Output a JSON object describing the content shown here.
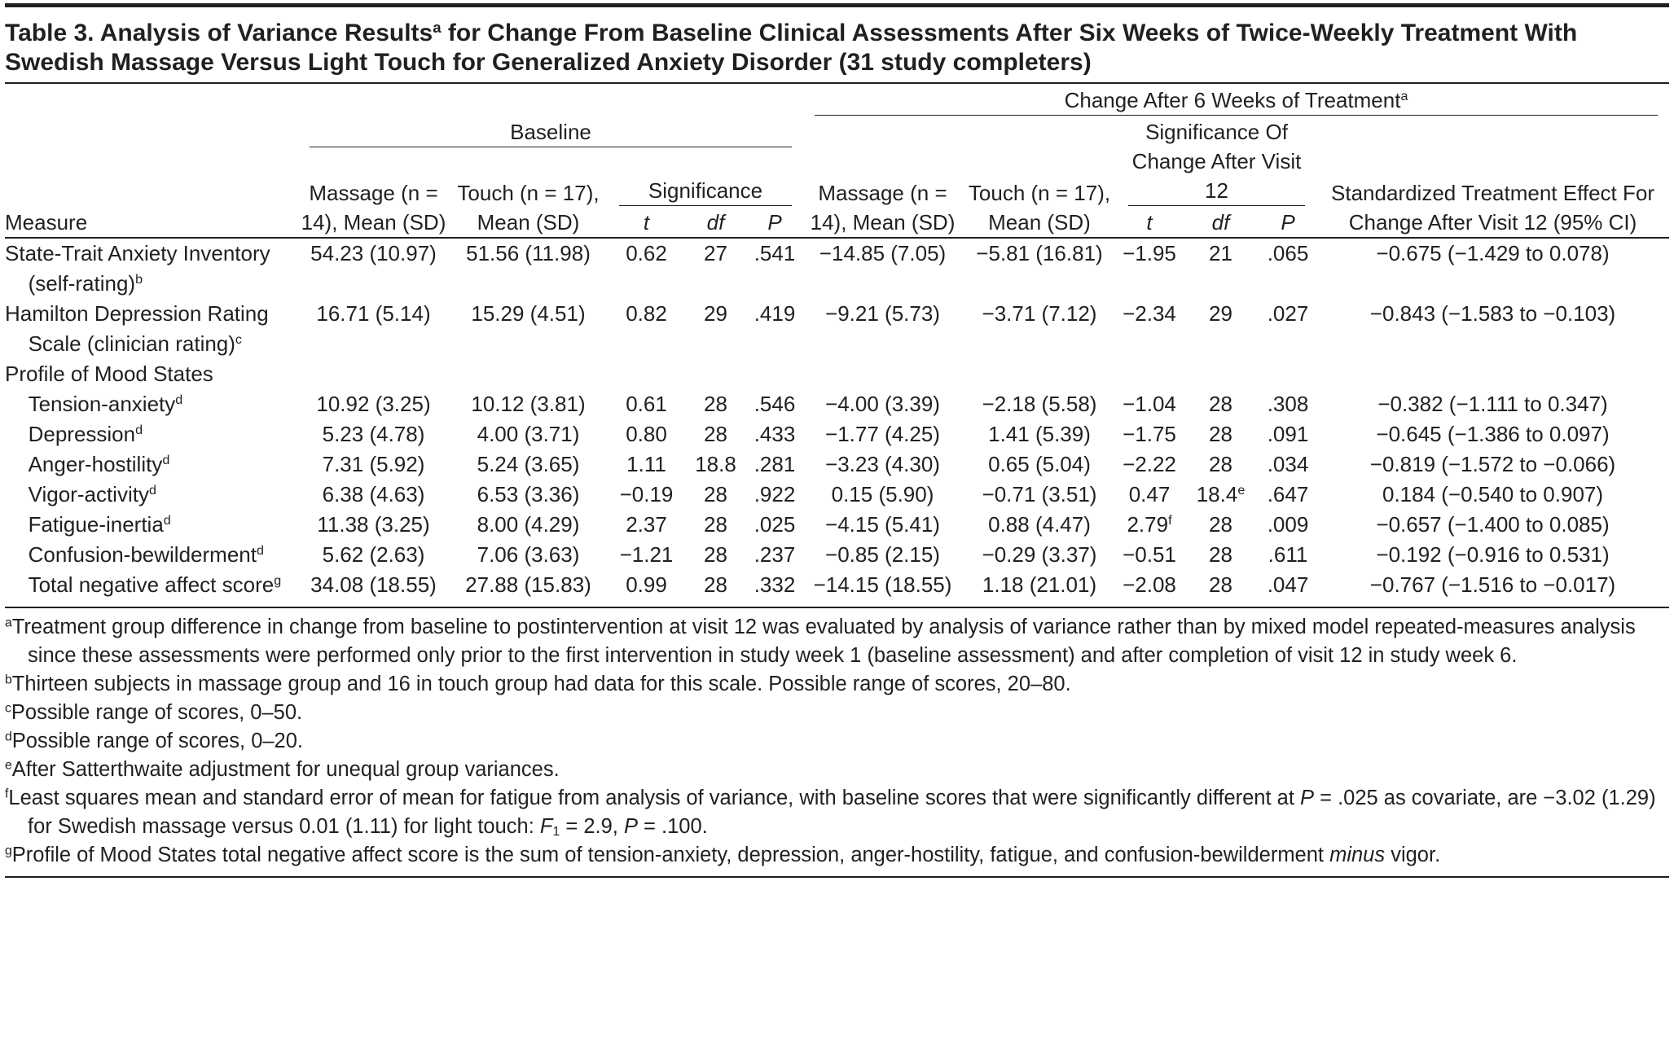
{
  "title": {
    "text": "Table 3. Analysis of Variance Results",
    "sup": "a",
    "rest": " for Change From Baseline Clinical Assessments After Six Weeks of Twice-Weekly Treatment With Swedish Massage Versus Light Touch for Generalized Anxiety Disorder (31 study completers)"
  },
  "header": {
    "change_group": {
      "text": "Change After 6 Weeks of Treatment",
      "sup": "a"
    },
    "baseline_group": "Baseline",
    "baseline_significance": "Significance",
    "change_significance": "Significance Of Change After Visit 12",
    "columns": [
      "Measure",
      "Massage (n = 14), Mean (SD)",
      "Touch (n = 17), Mean (SD)",
      "t",
      "df",
      "P",
      "Massage (n = 14), Mean (SD)",
      "Touch (n = 17), Mean (SD)",
      "t",
      "df",
      "P",
      "Standardized Treatment Effect For Change After Visit 12 (95% CI)"
    ]
  },
  "rows": [
    {
      "measure": "State-Trait Anxiety Inventory (self-rating)",
      "sup": "b",
      "values": [
        "54.23 (10.97)",
        "51.56 (11.98)",
        "0.62",
        "27",
        ".541",
        "−14.85 (7.05)",
        "−5.81 (16.81)",
        "−1.95",
        "21",
        ".065",
        "−0.675 (−1.429 to 0.078)"
      ]
    },
    {
      "measure": "Hamilton Depression Rating Scale (clinician rating)",
      "sup": "c",
      "values": [
        "16.71 (5.14)",
        "15.29 (4.51)",
        "0.82",
        "29",
        ".419",
        "−9.21 (5.73)",
        "−3.71 (7.12)",
        "−2.34",
        "29",
        ".027",
        "−0.843 (−1.583 to −0.103)"
      ]
    }
  ],
  "group": {
    "label": "Profile of Mood States",
    "rows": [
      {
        "measure": "Tension-anxiety",
        "sup": "d",
        "values": [
          "10.92 (3.25)",
          "10.12 (3.81)",
          "0.61",
          "28",
          ".546",
          "−4.00 (3.39)",
          "−2.18 (5.58)",
          "−1.04",
          "28",
          ".308",
          "−0.382 (−1.111 to 0.347)"
        ]
      },
      {
        "measure": "Depression",
        "sup": "d",
        "values": [
          "5.23 (4.78)",
          "4.00 (3.71)",
          "0.80",
          "28",
          ".433",
          "−1.77 (4.25)",
          "1.41 (5.39)",
          "−1.75",
          "28",
          ".091",
          "−0.645 (−1.386 to 0.097)"
        ]
      },
      {
        "measure": "Anger-hostility",
        "sup": "d",
        "values": [
          "7.31 (5.92)",
          "5.24 (3.65)",
          "1.11",
          "18.8",
          ".281",
          "−3.23 (4.30)",
          "0.65 (5.04)",
          "−2.22",
          "28",
          ".034",
          "−0.819 (−1.572 to −0.066)"
        ]
      },
      {
        "measure": "Vigor-activity",
        "sup": "d",
        "values": [
          "6.38 (4.63)",
          "6.53 (3.36)",
          "−0.19",
          "28",
          ".922",
          "0.15 (5.90)",
          "−0.71 (3.51)",
          "0.47",
          {
            "text": "18.4",
            "sup": "e"
          },
          ".647",
          "0.184 (−0.540 to 0.907)"
        ]
      },
      {
        "measure": "Fatigue-inertia",
        "sup": "d",
        "values": [
          "11.38 (3.25)",
          "8.00 (4.29)",
          "2.37",
          "28",
          ".025",
          "−4.15 (5.41)",
          "0.88 (4.47)",
          {
            "text": "2.79",
            "sup": "f"
          },
          "28",
          ".009",
          "−0.657 (−1.400 to 0.085)"
        ]
      },
      {
        "measure": "Confusion-bewilderment",
        "sup": "d",
        "values": [
          "5.62 (2.63)",
          "7.06 (3.63)",
          "−1.21",
          "28",
          ".237",
          "−0.85 (2.15)",
          "−0.29 (3.37)",
          "−0.51",
          "28",
          ".611",
          "−0.192 (−0.916 to 0.531)"
        ]
      },
      {
        "measure": "Total negative affect score",
        "sup": "g",
        "values": [
          "34.08 (18.55)",
          "27.88 (15.83)",
          "0.99",
          "28",
          ".332",
          "−14.15 (18.55)",
          "1.18 (21.01)",
          "−2.08",
          "28",
          ".047",
          "−0.767 (−1.516 to −0.017)"
        ]
      }
    ]
  },
  "footnotes": [
    {
      "mark": "a",
      "text": [
        "Treatment group difference in change from baseline to postintervention at visit 12 was evaluated by analysis of variance rather than by mixed model repeated-measures analysis since these assessments were performed only prior to the first intervention in study week 1 (baseline assessment) and after completion of visit 12 in study week 6."
      ]
    },
    {
      "mark": "b",
      "text": [
        "Thirteen subjects in massage group and 16 in touch group had data for this scale. Possible range of scores, 20–80."
      ]
    },
    {
      "mark": "c",
      "text": [
        "Possible range of scores, 0–50."
      ]
    },
    {
      "mark": "d",
      "text": [
        "Possible range of scores, 0–20."
      ]
    },
    {
      "mark": "e",
      "text": [
        "After Satterthwaite adjustment for unequal group variances."
      ]
    },
    {
      "mark": "f",
      "text": [
        "Least squares mean and standard error of mean for fatigue from analysis of variance, with baseline scores that were significantly different at ",
        {
          "i": "P"
        },
        " = .025 as covariate, are −3.02 (1.29) for Swedish massage versus 0.01 (1.11) for light touch: ",
        {
          "i": "F"
        },
        {
          "sub": "1"
        },
        " = 2.9, ",
        {
          "i": "P"
        },
        " = .100."
      ]
    },
    {
      "mark": "g",
      "text": [
        "Profile of Mood States total negative affect score is the sum of tension-anxiety, depression, anger-hostility, fatigue, and confusion-bewilderment ",
        {
          "i": "minus"
        },
        " vigor."
      ]
    }
  ]
}
